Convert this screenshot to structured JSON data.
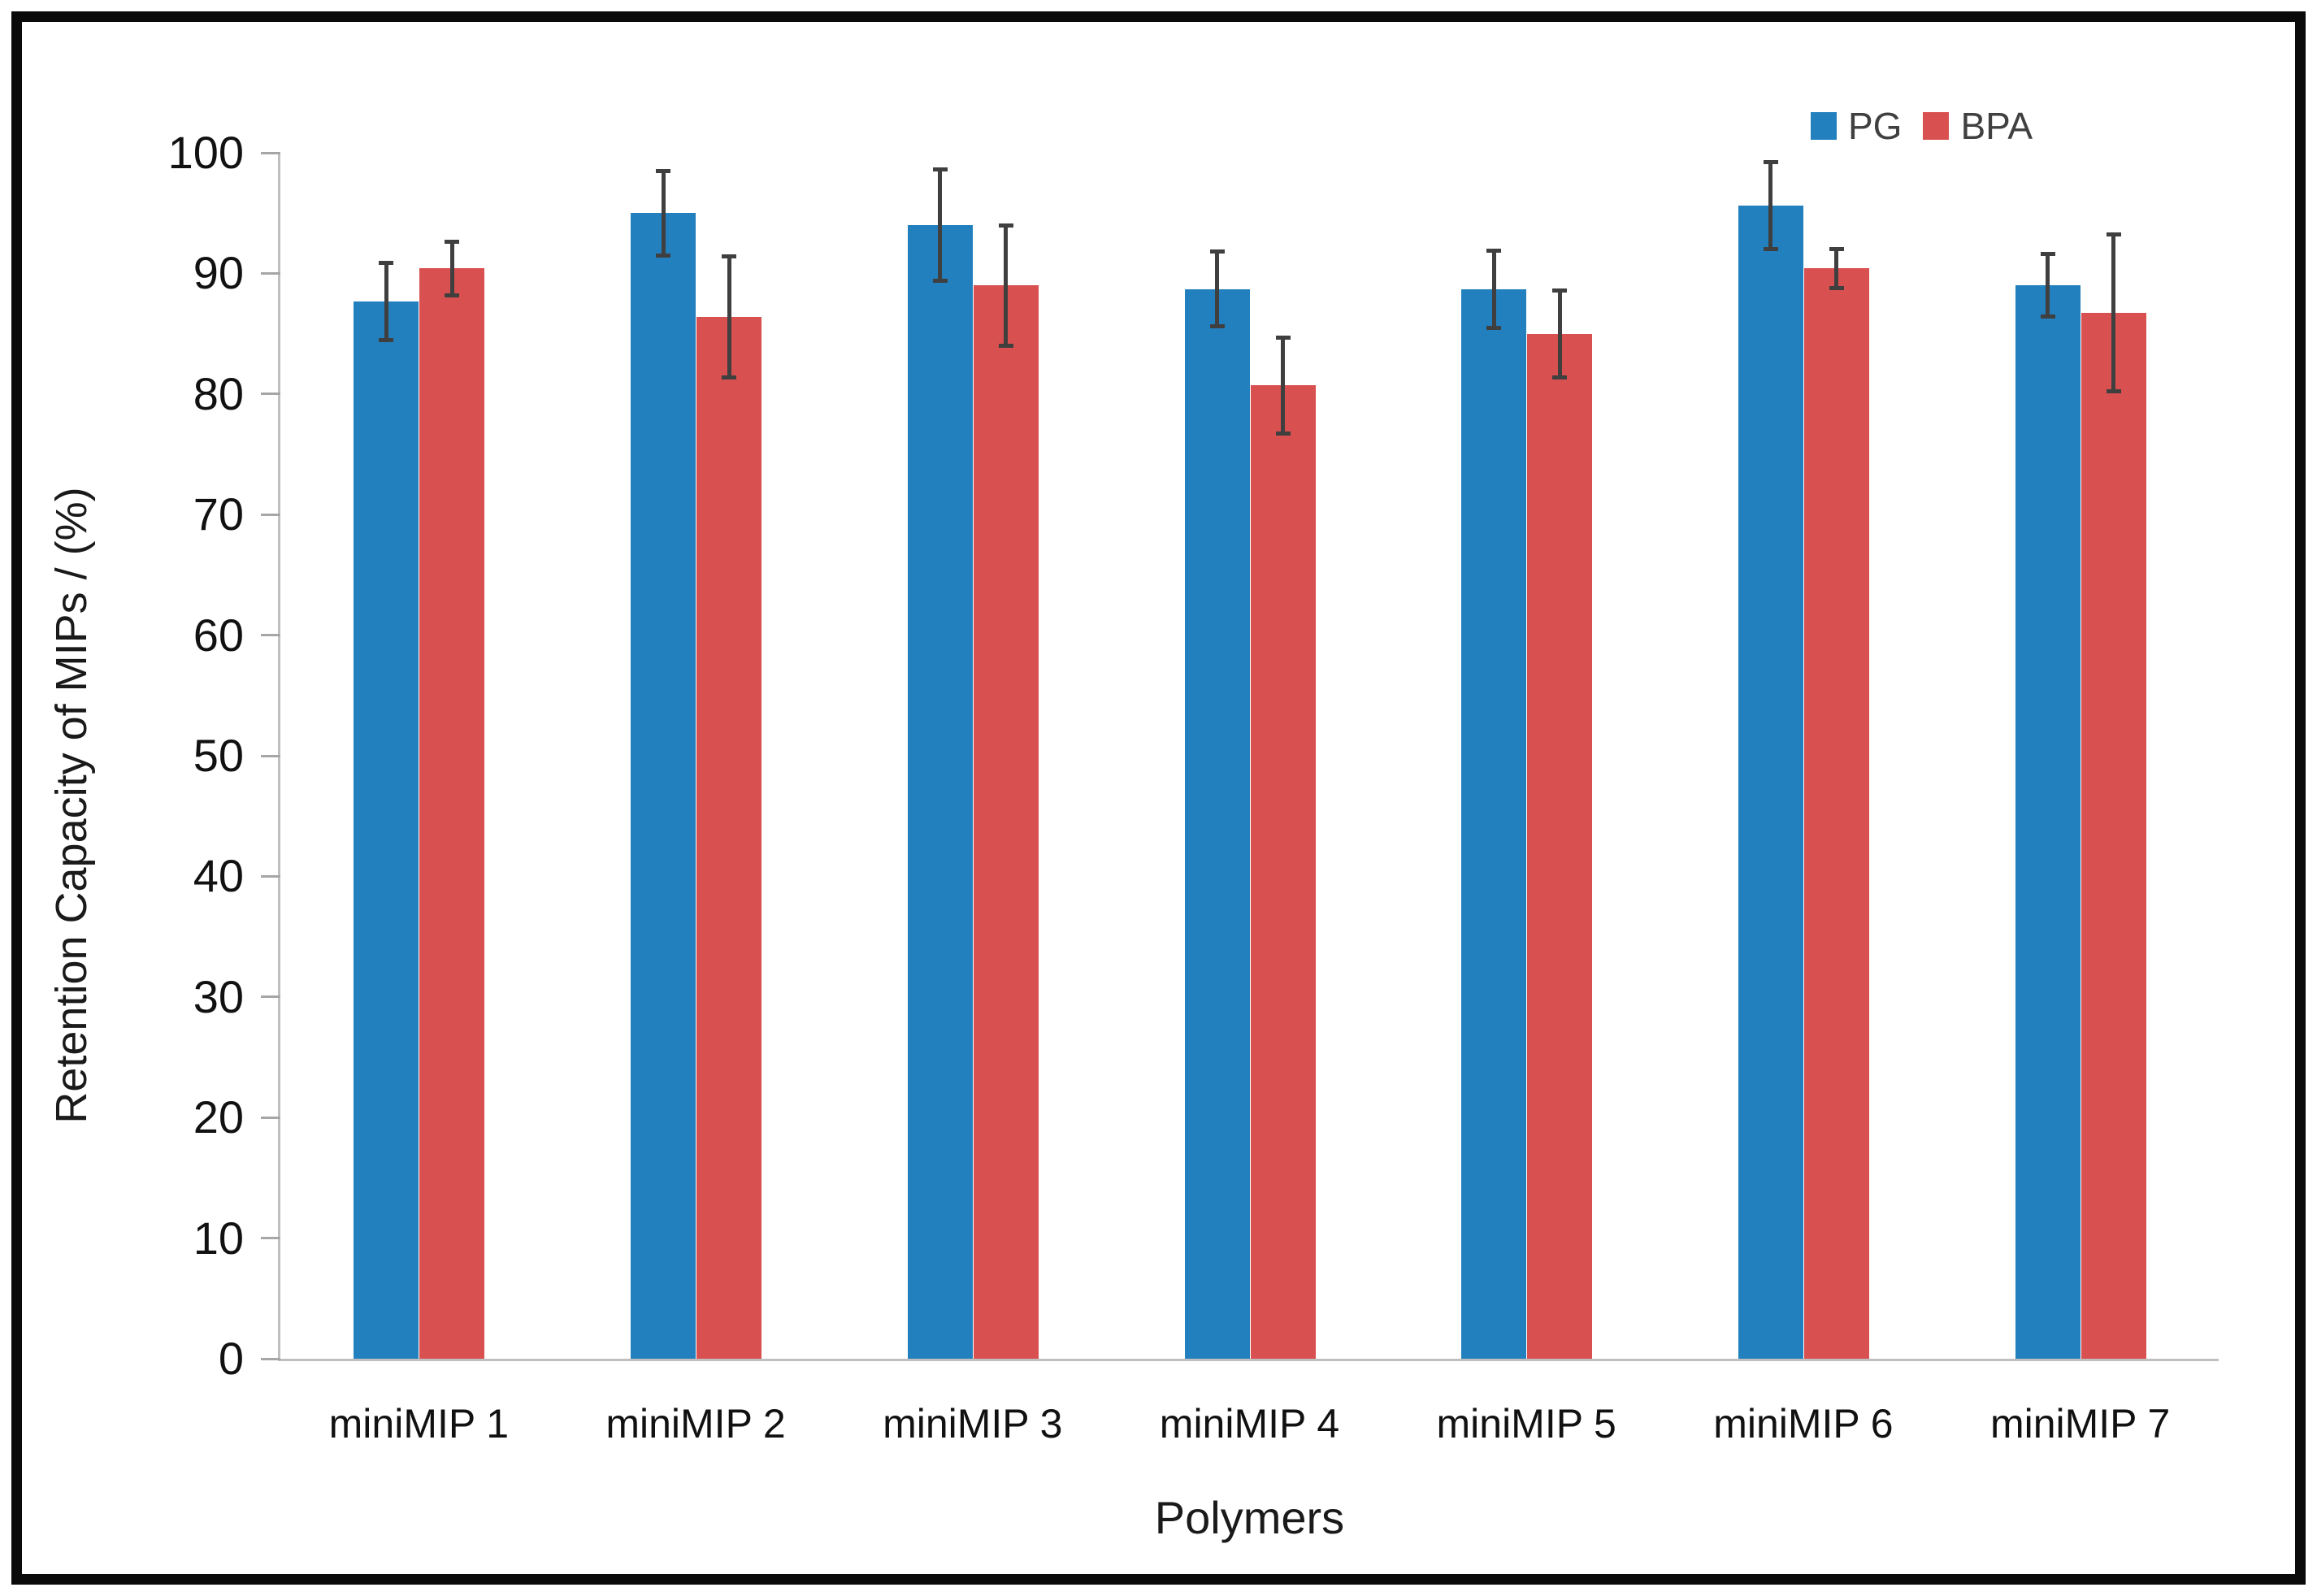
{
  "figure": {
    "background": "#ffffff",
    "border_color": "#0a0a0a"
  },
  "legend": {
    "position": "top-right",
    "entries": [
      {
        "label": "PG",
        "color": "#2380BE"
      },
      {
        "label": "BPA",
        "color": "#D95050"
      }
    ]
  },
  "chart_data": {
    "type": "bar",
    "title": "",
    "xlabel": "Polymers",
    "ylabel": "Retention Capacity of MIPs / (%)",
    "ylim": [
      0,
      100
    ],
    "yticks": [
      0,
      10,
      20,
      30,
      40,
      50,
      60,
      70,
      80,
      90,
      100
    ],
    "grid": false,
    "legend_position": "top-right",
    "categories": [
      "miniMIP 1",
      "miniMIP 2",
      "miniMIP 3",
      "miniMIP 4",
      "miniMIP 5",
      "miniMIP 6",
      "miniMIP 7"
    ],
    "series": [
      {
        "name": "PG",
        "color": "#2380BE",
        "values": [
          87.7,
          95.0,
          94.0,
          88.7,
          88.7,
          95.6,
          89.0
        ],
        "errors": [
          3.2,
          3.5,
          4.6,
          3.1,
          3.2,
          3.6,
          2.6
        ]
      },
      {
        "name": "BPA",
        "color": "#D95050",
        "values": [
          90.4,
          86.4,
          89.0,
          80.7,
          85.0,
          90.4,
          86.7
        ],
        "errors": [
          2.2,
          5.0,
          5.0,
          4.0,
          3.6,
          1.6,
          6.5
        ]
      }
    ],
    "error_bar_color": "#3f3f3f",
    "axis_color": "#bfbfbf",
    "text_color": "#111111"
  }
}
